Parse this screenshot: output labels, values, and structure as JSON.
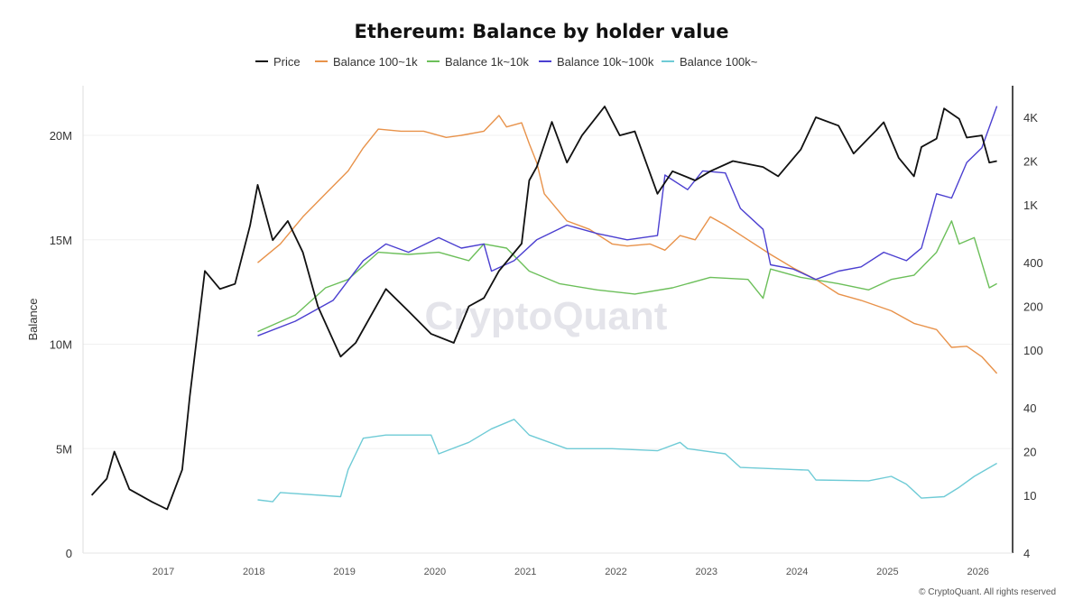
{
  "chart_data": {
    "type": "line",
    "title": "Ethereum: Balance by holder value",
    "ylabel": "Balance",
    "ylabel_right": "",
    "ylim": [
      0,
      22500000
    ],
    "y_ticks": [
      {
        "v": 0,
        "label": "0"
      },
      {
        "v": 5,
        "label": "5M"
      },
      {
        "v": 10,
        "label": "10M"
      },
      {
        "v": 15,
        "label": "15M"
      },
      {
        "v": 20,
        "label": "20M"
      }
    ],
    "y_unit_scale": 1000000,
    "y2_scale": "log",
    "y2lim": [
      4,
      6000
    ],
    "y2_ticks": [
      {
        "v": 4,
        "label": "4"
      },
      {
        "v": 10,
        "label": "10"
      },
      {
        "v": 20,
        "label": "20"
      },
      {
        "v": 40,
        "label": "40"
      },
      {
        "v": 100,
        "label": "100"
      },
      {
        "v": 200,
        "label": "200"
      },
      {
        "v": 400,
        "label": "400"
      },
      {
        "v": 1000,
        "label": "1K"
      },
      {
        "v": 2000,
        "label": "2K"
      },
      {
        "v": 4000,
        "label": "4K"
      }
    ],
    "x_ticks": [
      "2017",
      "2018",
      "2019",
      "2020",
      "2021",
      "2022",
      "2023",
      "2024",
      "2025",
      "2026"
    ],
    "xlim": [
      "2016-02",
      "2026-06"
    ],
    "grid": true,
    "legend_position": "top",
    "watermark": "CryptoQuant",
    "series": [
      {
        "name": "Price",
        "axis": "right",
        "color": "#111111",
        "points": [
          [
            "2016-03",
            10
          ],
          [
            "2016-05",
            13
          ],
          [
            "2016-06",
            20
          ],
          [
            "2016-08",
            11
          ],
          [
            "2016-11",
            9
          ],
          [
            "2017-01",
            8
          ],
          [
            "2017-03",
            15
          ],
          [
            "2017-04",
            48
          ],
          [
            "2017-06",
            350
          ],
          [
            "2017-08",
            263
          ],
          [
            "2017-10",
            285
          ],
          [
            "2017-12",
            720
          ],
          [
            "2018-01",
            1370
          ],
          [
            "2018-03",
            570
          ],
          [
            "2018-05",
            773
          ],
          [
            "2018-07",
            470
          ],
          [
            "2018-09",
            199
          ],
          [
            "2018-12",
            90
          ],
          [
            "2019-02",
            112
          ],
          [
            "2019-06",
            263
          ],
          [
            "2019-09",
            185
          ],
          [
            "2019-12",
            129
          ],
          [
            "2020-03",
            112
          ],
          [
            "2020-05",
            200
          ],
          [
            "2020-07",
            228
          ],
          [
            "2020-09",
            350
          ],
          [
            "2020-12",
            540
          ],
          [
            "2021-01",
            1470
          ],
          [
            "2021-02",
            1820
          ],
          [
            "2021-04",
            3720
          ],
          [
            "2021-06",
            1950
          ],
          [
            "2021-08",
            3000
          ],
          [
            "2021-11",
            4750
          ],
          [
            "2022-01",
            3000
          ],
          [
            "2022-03",
            3200
          ],
          [
            "2022-06",
            1190
          ],
          [
            "2022-08",
            1700
          ],
          [
            "2022-11",
            1470
          ],
          [
            "2023-01",
            1700
          ],
          [
            "2023-04",
            2000
          ],
          [
            "2023-08",
            1820
          ],
          [
            "2023-10",
            1570
          ],
          [
            "2024-01",
            2400
          ],
          [
            "2024-03",
            4000
          ],
          [
            "2024-06",
            3500
          ],
          [
            "2024-08",
            2250
          ],
          [
            "2024-11",
            3250
          ],
          [
            "2024-12",
            3700
          ],
          [
            "2025-02",
            2100
          ],
          [
            "2025-04",
            1570
          ],
          [
            "2025-05",
            2500
          ],
          [
            "2025-07",
            2850
          ],
          [
            "2025-08",
            4600
          ],
          [
            "2025-10",
            3900
          ],
          [
            "2025-11",
            2900
          ],
          [
            "2026-01",
            3000
          ],
          [
            "2026-02",
            1950
          ],
          [
            "2026-03",
            2000
          ]
        ]
      },
      {
        "name": "Balance 100~1k",
        "axis": "left",
        "color": "#e8924a",
        "points": [
          [
            "2018-01",
            13.9
          ],
          [
            "2018-04",
            14.8
          ],
          [
            "2018-07",
            16.1
          ],
          [
            "2018-10",
            17.2
          ],
          [
            "2019-01",
            18.3
          ],
          [
            "2019-03",
            19.4
          ],
          [
            "2019-05",
            20.3
          ],
          [
            "2019-08",
            20.2
          ],
          [
            "2019-11",
            20.2
          ],
          [
            "2020-02",
            19.9
          ],
          [
            "2020-04",
            20.0
          ],
          [
            "2020-07",
            20.2
          ],
          [
            "2020-09",
            20.95
          ],
          [
            "2020-10",
            20.4
          ],
          [
            "2020-12",
            20.6
          ],
          [
            "2021-01",
            19.6
          ],
          [
            "2021-02",
            18.7
          ],
          [
            "2021-03",
            17.2
          ],
          [
            "2021-06",
            15.9
          ],
          [
            "2021-09",
            15.5
          ],
          [
            "2021-12",
            14.8
          ],
          [
            "2022-02",
            14.7
          ],
          [
            "2022-05",
            14.8
          ],
          [
            "2022-07",
            14.5
          ],
          [
            "2022-09",
            15.2
          ],
          [
            "2022-11",
            15.0
          ],
          [
            "2023-01",
            16.1
          ],
          [
            "2023-03",
            15.7
          ],
          [
            "2023-06",
            15.0
          ],
          [
            "2023-09",
            14.3
          ],
          [
            "2023-12",
            13.65
          ],
          [
            "2024-03",
            13.1
          ],
          [
            "2024-06",
            12.4
          ],
          [
            "2024-09",
            12.1
          ],
          [
            "2025-01",
            11.6
          ],
          [
            "2025-04",
            11.0
          ],
          [
            "2025-07",
            10.7
          ],
          [
            "2025-09",
            9.85
          ],
          [
            "2025-11",
            9.9
          ],
          [
            "2026-01",
            9.4
          ],
          [
            "2026-03",
            8.6
          ]
        ]
      },
      {
        "name": "Balance 1k~10k",
        "axis": "left",
        "color": "#6cbf5a",
        "points": [
          [
            "2018-01",
            10.6
          ],
          [
            "2018-06",
            11.4
          ],
          [
            "2018-10",
            12.7
          ],
          [
            "2019-01",
            13.1
          ],
          [
            "2019-05",
            14.4
          ],
          [
            "2019-09",
            14.3
          ],
          [
            "2020-01",
            14.4
          ],
          [
            "2020-05",
            14.0
          ],
          [
            "2020-07",
            14.8
          ],
          [
            "2020-10",
            14.6
          ],
          [
            "2021-01",
            13.5
          ],
          [
            "2021-05",
            12.9
          ],
          [
            "2021-10",
            12.6
          ],
          [
            "2022-03",
            12.4
          ],
          [
            "2022-08",
            12.7
          ],
          [
            "2023-01",
            13.2
          ],
          [
            "2023-06",
            13.1
          ],
          [
            "2023-08",
            12.2
          ],
          [
            "2023-09",
            13.6
          ],
          [
            "2024-01",
            13.2
          ],
          [
            "2024-06",
            12.9
          ],
          [
            "2024-10",
            12.6
          ],
          [
            "2025-01",
            13.1
          ],
          [
            "2025-04",
            13.3
          ],
          [
            "2025-07",
            14.4
          ],
          [
            "2025-09",
            15.9
          ],
          [
            "2025-10",
            14.8
          ],
          [
            "2025-12",
            15.1
          ],
          [
            "2026-02",
            12.7
          ],
          [
            "2026-03",
            12.9
          ]
        ]
      },
      {
        "name": "Balance 10k~100k",
        "axis": "left",
        "color": "#4b3fd0",
        "points": [
          [
            "2018-01",
            10.4
          ],
          [
            "2018-06",
            11.1
          ],
          [
            "2018-11",
            12.1
          ],
          [
            "2019-03",
            14.0
          ],
          [
            "2019-06",
            14.8
          ],
          [
            "2019-09",
            14.4
          ],
          [
            "2020-01",
            15.1
          ],
          [
            "2020-04",
            14.6
          ],
          [
            "2020-07",
            14.8
          ],
          [
            "2020-08",
            13.5
          ],
          [
            "2020-11",
            14.0
          ],
          [
            "2021-02",
            15.0
          ],
          [
            "2021-06",
            15.7
          ],
          [
            "2021-10",
            15.3
          ],
          [
            "2022-02",
            15.0
          ],
          [
            "2022-06",
            15.2
          ],
          [
            "2022-07",
            18.1
          ],
          [
            "2022-10",
            17.4
          ],
          [
            "2022-12",
            18.3
          ],
          [
            "2023-03",
            18.2
          ],
          [
            "2023-05",
            16.5
          ],
          [
            "2023-08",
            15.5
          ],
          [
            "2023-09",
            13.8
          ],
          [
            "2023-12",
            13.6
          ],
          [
            "2024-03",
            13.1
          ],
          [
            "2024-06",
            13.5
          ],
          [
            "2024-09",
            13.7
          ],
          [
            "2024-12",
            14.4
          ],
          [
            "2025-03",
            14.0
          ],
          [
            "2025-05",
            14.6
          ],
          [
            "2025-07",
            17.2
          ],
          [
            "2025-09",
            17.0
          ],
          [
            "2025-11",
            18.7
          ],
          [
            "2026-01",
            19.4
          ],
          [
            "2026-03",
            21.4
          ]
        ]
      },
      {
        "name": "Balance 100k~",
        "axis": "left",
        "color": "#6fcbd6",
        "points": [
          [
            "2018-01",
            2.55
          ],
          [
            "2018-03",
            2.46
          ],
          [
            "2018-04",
            2.9
          ],
          [
            "2018-12",
            2.7
          ],
          [
            "2019-01",
            4.0
          ],
          [
            "2019-03",
            5.5
          ],
          [
            "2019-06",
            5.65
          ],
          [
            "2019-12",
            5.65
          ],
          [
            "2020-01",
            4.75
          ],
          [
            "2020-05",
            5.3
          ],
          [
            "2020-08",
            5.95
          ],
          [
            "2020-11",
            6.4
          ],
          [
            "2021-01",
            5.65
          ],
          [
            "2021-06",
            5.0
          ],
          [
            "2021-12",
            5.0
          ],
          [
            "2022-06",
            4.9
          ],
          [
            "2022-09",
            5.3
          ],
          [
            "2022-10",
            5.0
          ],
          [
            "2023-03",
            4.75
          ],
          [
            "2023-05",
            4.1
          ],
          [
            "2023-12",
            4.0
          ],
          [
            "2024-02",
            3.97
          ],
          [
            "2024-03",
            3.5
          ],
          [
            "2024-10",
            3.46
          ],
          [
            "2025-01",
            3.67
          ],
          [
            "2025-03",
            3.3
          ],
          [
            "2025-05",
            2.63
          ],
          [
            "2025-08",
            2.7
          ],
          [
            "2025-10",
            3.15
          ],
          [
            "2025-12",
            3.67
          ],
          [
            "2026-03",
            4.3
          ]
        ]
      }
    ]
  },
  "footer": {
    "copyright": "© CryptoQuant. All rights reserved"
  }
}
